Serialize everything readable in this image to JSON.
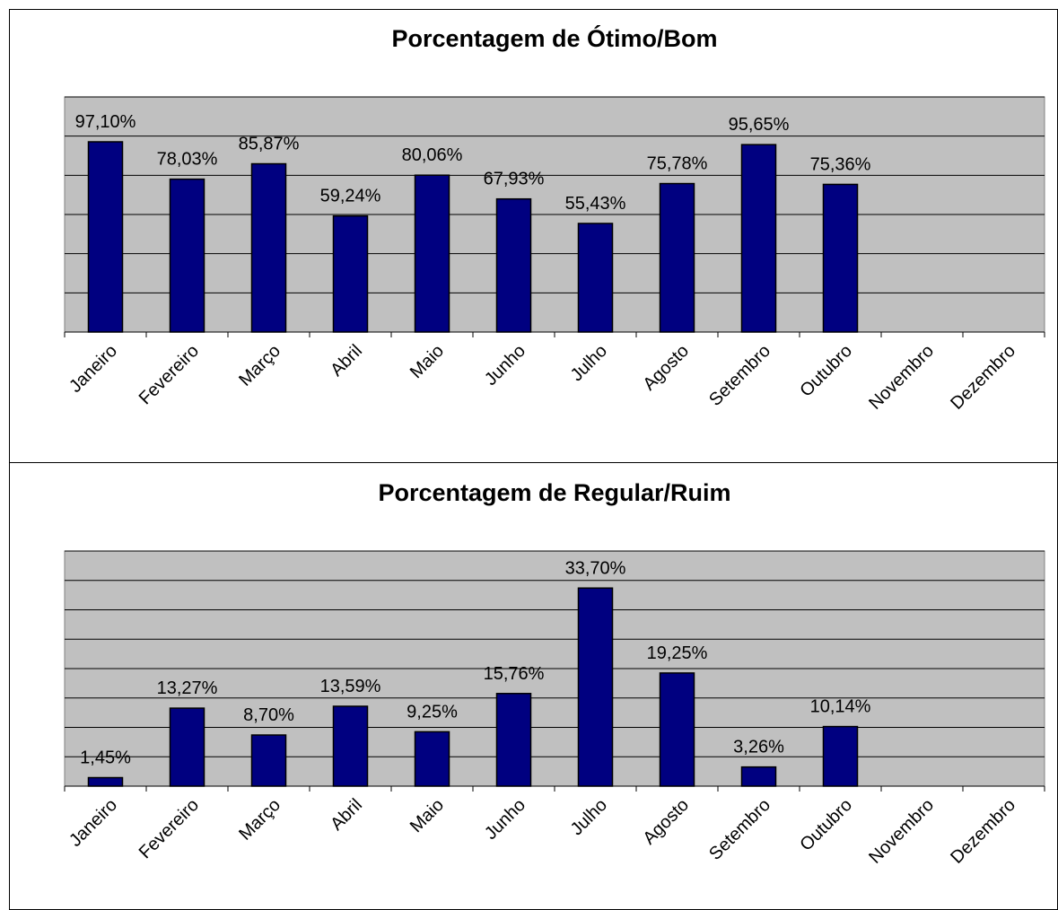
{
  "chart_data": [
    {
      "type": "bar",
      "title": "Porcentagem de Ótimo/Bom",
      "categories": [
        "Janeiro",
        "Fevereiro",
        "Março",
        "Abril",
        "Maio",
        "Junho",
        "Julho",
        "Agosto",
        "Setembro",
        "Outubro",
        "Novembro",
        "Dezembro"
      ],
      "values": [
        97.1,
        78.03,
        85.87,
        59.24,
        80.06,
        67.93,
        55.43,
        75.78,
        95.65,
        75.36,
        null,
        null
      ],
      "value_labels": [
        "97,10%",
        "78,03%",
        "85,87%",
        "59,24%",
        "80,06%",
        "67,93%",
        "55,43%",
        "75,78%",
        "95,65%",
        "75,36%",
        null,
        null
      ],
      "color": "#000080",
      "ylim": [
        0,
        120
      ],
      "yticks": [
        0,
        20,
        40,
        60,
        80,
        100,
        120
      ],
      "grid": true
    },
    {
      "type": "bar",
      "title": "Porcentagem de Regular/Ruim",
      "categories": [
        "Janeiro",
        "Fevereiro",
        "Março",
        "Abril",
        "Maio",
        "Junho",
        "Julho",
        "Agosto",
        "Setembro",
        "Outubro",
        "Novembro",
        "Dezembro"
      ],
      "values": [
        1.45,
        13.27,
        8.7,
        13.59,
        9.25,
        15.76,
        33.7,
        19.25,
        3.26,
        10.14,
        null,
        null
      ],
      "value_labels": [
        "1,45%",
        "13,27%",
        "8,70%",
        "13,59%",
        "9,25%",
        "15,76%",
        "33,70%",
        "19,25%",
        "3,26%",
        "10,14%",
        null,
        null
      ],
      "color": "#000080",
      "ylim": [
        0,
        40
      ],
      "yticks": [
        0,
        5,
        10,
        15,
        20,
        25,
        30,
        35,
        40
      ],
      "grid": true
    }
  ]
}
